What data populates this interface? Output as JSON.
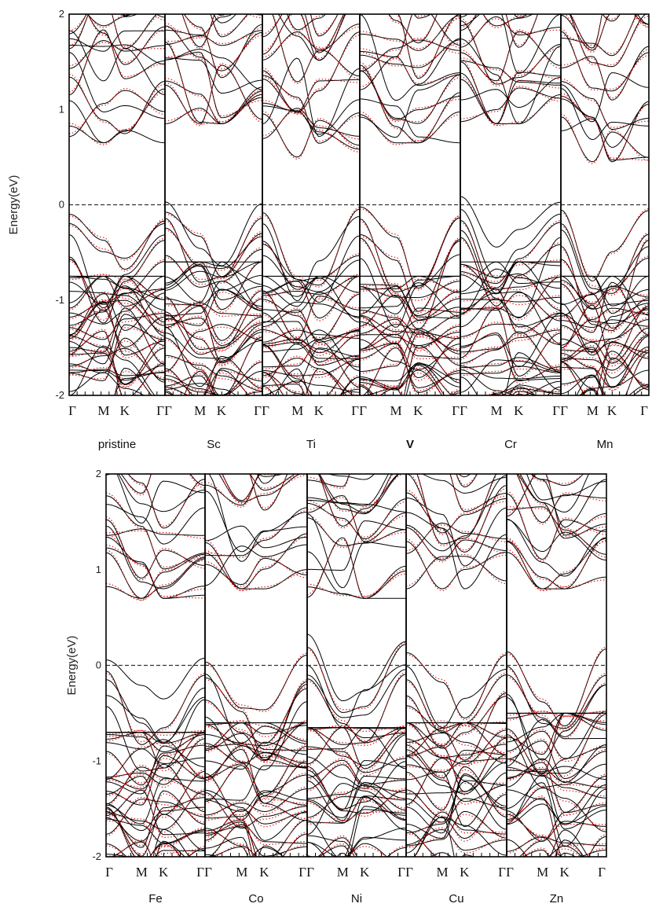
{
  "chart_data": [
    {
      "type": "line",
      "ylabel": "Energy(eV)",
      "ylim": [
        -2,
        2
      ],
      "yticks": [
        2,
        1,
        0,
        -1,
        -2
      ],
      "kpath_labels": [
        "Γ",
        "M",
        "K",
        "Γ"
      ],
      "fermi_level": 0,
      "colors": {
        "spin_up": "#000000",
        "spin_down": "#e02020"
      },
      "panels": [
        {
          "name": "pristine",
          "cbm": 0.65,
          "vbm": 0.0,
          "vb_dense": -0.75
        },
        {
          "name": "Sc",
          "cbm": 0.85,
          "vbm": 0.12,
          "vb_dense": -0.6
        },
        {
          "name": "Ti",
          "cbm": 0.5,
          "vbm": 0.0,
          "vb_dense": -0.75
        },
        {
          "name": "V",
          "cbm": 0.65,
          "vbm": 0.05,
          "vb_dense": -0.75
        },
        {
          "name": "Cr",
          "cbm": 0.85,
          "vbm": 0.15,
          "vb_dense": -0.6
        },
        {
          "name": "Mn",
          "cbm": 0.45,
          "vbm": 0.0,
          "vb_dense": -0.75
        }
      ]
    },
    {
      "type": "line",
      "ylabel": "Energy(eV)",
      "ylim": [
        -2,
        2
      ],
      "yticks": [
        2,
        1,
        0,
        -1,
        -2
      ],
      "kpath_labels": [
        "Γ",
        "M",
        "K",
        "Γ"
      ],
      "fermi_level": 0,
      "colors": {
        "spin_up": "#000000",
        "spin_down": "#e02020"
      },
      "panels": [
        {
          "name": "Fe",
          "cbm": 0.7,
          "vbm": 0.15,
          "vb_dense": -0.7
        },
        {
          "name": "Co",
          "cbm": 0.8,
          "vbm": 0.12,
          "vb_dense": -0.6
        },
        {
          "name": "Ni",
          "cbm": 0.7,
          "vbm": 0.4,
          "vb_dense": -0.65
        },
        {
          "name": "Cu",
          "cbm": 0.8,
          "vbm": 0.2,
          "vb_dense": -0.6
        },
        {
          "name": "Zn",
          "cbm": 0.8,
          "vbm": 0.2,
          "vb_dense": -0.5
        }
      ]
    }
  ]
}
